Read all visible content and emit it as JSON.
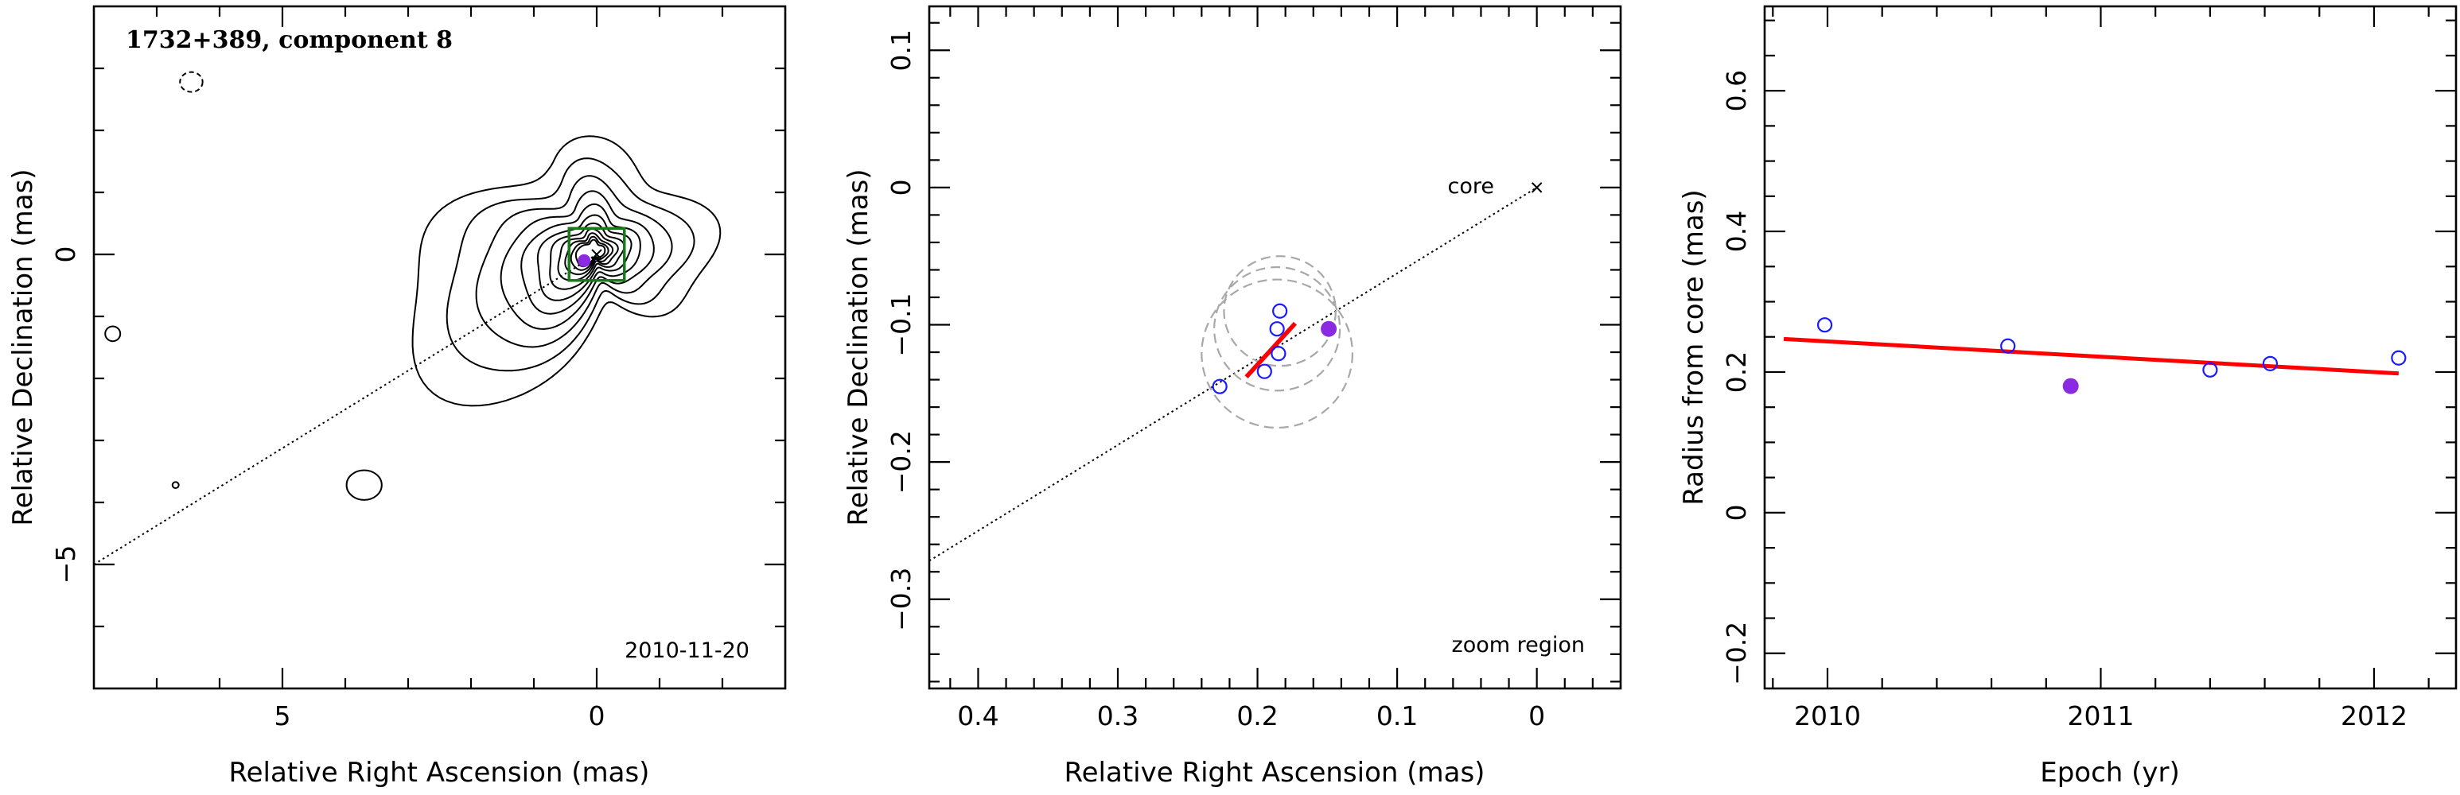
{
  "chart_data": [
    {
      "type": "contour",
      "title": "1732+389, component 8",
      "xlabel": "Relative Right Ascension (mas)",
      "ylabel": "Relative Declination (mas)",
      "xlim": [
        8.0,
        -3.0
      ],
      "ylim": [
        -7.0,
        4.0
      ],
      "xticks": [
        5,
        0
      ],
      "yticks": [
        0,
        -5
      ],
      "date_label": "2010-11-20",
      "core": [
        0,
        0
      ],
      "component": [
        0.2,
        -0.1
      ],
      "jet_line": {
        "from": [
          8.0,
          -5.0
        ],
        "to": [
          0,
          0
        ]
      },
      "contour_peak": [
        0.05,
        0.05
      ],
      "isolated_contours": [
        {
          "center": [
            7.7,
            -1.28
          ],
          "rx": 0.12,
          "ry": 0.12,
          "dashed": false
        },
        {
          "center": [
            6.45,
            2.78
          ],
          "rx": 0.18,
          "ry": 0.16,
          "dashed": true
        },
        {
          "center": [
            3.7,
            -3.72
          ],
          "rx": 0.28,
          "ry": 0.24,
          "dashed": false
        },
        {
          "center": [
            6.7,
            -3.72
          ],
          "rx": 0.05,
          "ry": 0.05,
          "dashed": false
        }
      ]
    },
    {
      "type": "scatter",
      "xlabel": "Relative Right Ascension (mas)",
      "ylabel": "Relative Declination (mas)",
      "xlim": [
        0.435,
        -0.06
      ],
      "ylim": [
        -0.365,
        0.132
      ],
      "xticks": [
        0.4,
        0.3,
        0.2,
        0.1,
        0
      ],
      "yticks": [
        0.1,
        0,
        -0.1,
        -0.2,
        -0.3
      ],
      "core_label": "core",
      "zoom_label": "zoom region",
      "core": [
        0,
        0
      ],
      "points": [
        {
          "x": 0.227,
          "y": -0.145,
          "filled": false
        },
        {
          "x": 0.195,
          "y": -0.134,
          "filled": false
        },
        {
          "x": 0.185,
          "y": -0.121,
          "filled": false
        },
        {
          "x": 0.186,
          "y": -0.103,
          "filled": false
        },
        {
          "x": 0.184,
          "y": -0.09,
          "filled": false
        },
        {
          "x": 0.149,
          "y": -0.103,
          "filled": true
        }
      ],
      "error_circles": [
        {
          "x": 0.186,
          "y": -0.103,
          "r": 0.045
        },
        {
          "x": 0.184,
          "y": -0.09,
          "r": 0.04
        },
        {
          "x": 0.186,
          "y": -0.121,
          "r": 0.054
        }
      ],
      "trajectory": {
        "from": [
          0.208,
          -0.138
        ],
        "to": [
          0.173,
          -0.099
        ]
      },
      "jet_line": {
        "from": [
          0.435,
          -0.272
        ],
        "to": [
          0,
          0
        ]
      }
    },
    {
      "type": "scatter",
      "xlabel": "Epoch (yr)",
      "ylabel": "Radius from core (mas)",
      "xlim": [
        2009.77,
        2012.3
      ],
      "ylim": [
        -0.25,
        0.72
      ],
      "xticks": [
        2010,
        2011,
        2012
      ],
      "yticks": [
        0.6,
        0.4,
        0.2,
        0,
        -0.2
      ],
      "points": [
        {
          "x": 2009.99,
          "y": 0.267,
          "filled": false
        },
        {
          "x": 2010.66,
          "y": 0.237,
          "filled": false
        },
        {
          "x": 2010.89,
          "y": 0.18,
          "filled": true
        },
        {
          "x": 2011.4,
          "y": 0.203,
          "filled": false
        },
        {
          "x": 2011.62,
          "y": 0.212,
          "filled": false
        },
        {
          "x": 2012.09,
          "y": 0.22,
          "filled": false
        }
      ],
      "fit": {
        "from": [
          2009.84,
          0.247
        ],
        "to": [
          2012.09,
          0.198
        ]
      }
    }
  ],
  "colors": {
    "open_marker": "#1a1aff",
    "filled_marker": "#8a2be2",
    "fit_line": "#ff0000",
    "box": "#1a7a1a",
    "error_circle": "#a8a8a8"
  }
}
